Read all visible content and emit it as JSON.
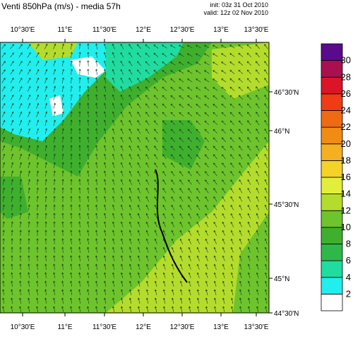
{
  "header": {
    "title": "Venti 850hPa (m/s) - media 57h",
    "init": "init: 03z 31 Oct 2010",
    "valid": "valid: 12z 02 Nov 2010"
  },
  "map": {
    "lon_ticks": [
      "10°30'E",
      "11°E",
      "11°30'E",
      "12°E",
      "12°30'E",
      "13°E",
      "13°30'E"
    ],
    "lat_ticks": [
      "46°30'N",
      "46°N",
      "45°30'N",
      "45°N",
      "44°30'N"
    ]
  },
  "colorbar": {
    "labels": [
      "2",
      "4",
      "6",
      "8",
      "10",
      "12",
      "14",
      "16",
      "18",
      "20",
      "22",
      "24",
      "26",
      "28",
      "30"
    ],
    "colors": [
      "#ffffff",
      "#22eeee",
      "#20dca0",
      "#2eb84a",
      "#3fb02e",
      "#6ec42c",
      "#b4dc2c",
      "#e2ee3a",
      "#f4d228",
      "#f4b020",
      "#f08c14",
      "#f06a14",
      "#f03c14",
      "#dc1428",
      "#aa1050",
      "#5a0a8c"
    ]
  }
}
